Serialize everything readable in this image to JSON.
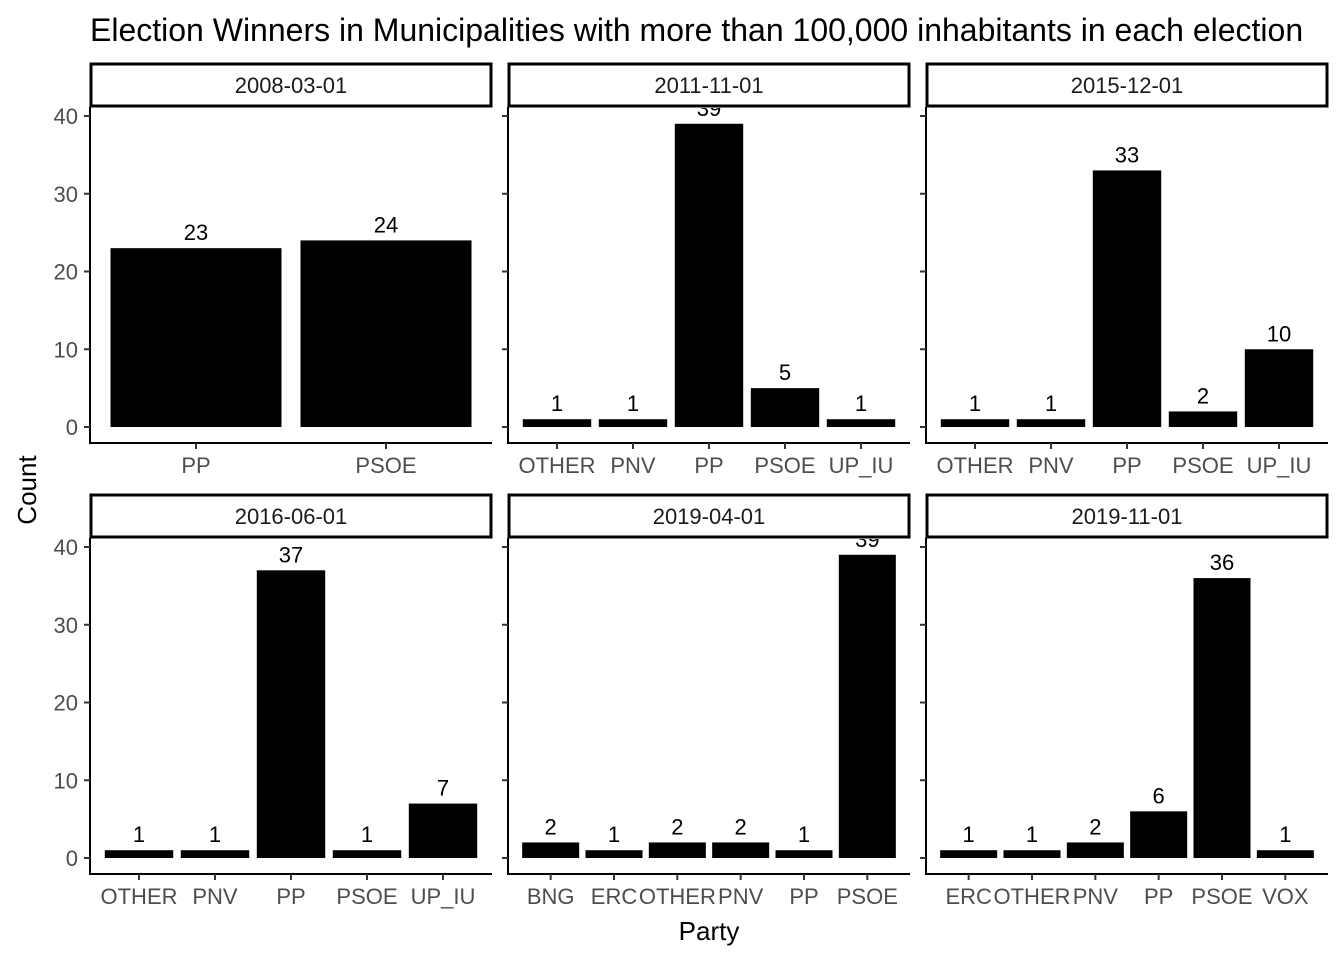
{
  "chart_data": {
    "type": "bar",
    "title": "Election Winners in Municipalities with more than 100,000 inhabitants in each election",
    "xlabel": "Party",
    "ylabel": "Count",
    "ylim": [
      0,
      40
    ],
    "y_ticks": [
      0,
      10,
      20,
      30,
      40
    ],
    "bar_color": "#000000",
    "grid": false,
    "legend": "none",
    "panels": [
      {
        "label": "2008-03-01",
        "categories": [
          "PP",
          "PSOE"
        ],
        "values": [
          23,
          24
        ]
      },
      {
        "label": "2011-11-01",
        "categories": [
          "OTHER",
          "PNV",
          "PP",
          "PSOE",
          "UP_IU"
        ],
        "values": [
          1,
          1,
          39,
          5,
          1
        ]
      },
      {
        "label": "2015-12-01",
        "categories": [
          "OTHER",
          "PNV",
          "PP",
          "PSOE",
          "UP_IU"
        ],
        "values": [
          1,
          1,
          33,
          2,
          10
        ]
      },
      {
        "label": "2016-06-01",
        "categories": [
          "OTHER",
          "PNV",
          "PP",
          "PSOE",
          "UP_IU"
        ],
        "values": [
          1,
          1,
          37,
          1,
          7
        ]
      },
      {
        "label": "2019-04-01",
        "categories": [
          "BNG",
          "ERC",
          "OTHER",
          "PNV",
          "PP",
          "PSOE"
        ],
        "values": [
          2,
          1,
          2,
          2,
          1,
          39
        ]
      },
      {
        "label": "2019-11-01",
        "categories": [
          "ERC",
          "OTHER",
          "PNV",
          "PP",
          "PSOE",
          "VOX"
        ],
        "values": [
          1,
          1,
          2,
          6,
          36,
          1
        ]
      }
    ]
  }
}
